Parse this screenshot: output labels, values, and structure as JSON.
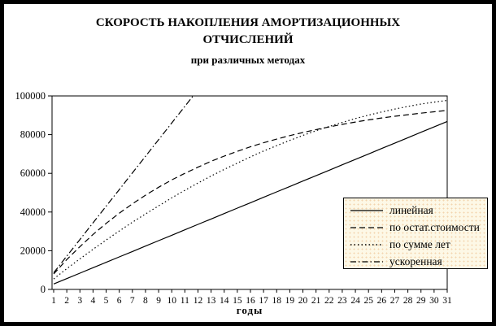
{
  "chart_data": {
    "type": "line",
    "title": "СКОРОСТЬ НАКОПЛЕНИЯ АМОРТИЗАЦИОННЫХ ОТЧИСЛЕНИЙ",
    "subtitle": "при различных методах",
    "xlabel": "годы",
    "ylabel": "",
    "x": [
      1,
      2,
      3,
      4,
      5,
      6,
      7,
      8,
      9,
      10,
      11,
      12,
      13,
      14,
      15,
      16,
      17,
      18,
      19,
      20,
      21,
      22,
      23,
      24,
      25,
      26,
      27,
      28,
      29,
      30,
      31
    ],
    "ylim": [
      0,
      100000
    ],
    "ytick_step": 20000,
    "ytick_labels": [
      "0",
      "20000",
      "40000",
      "60000",
      "80000",
      "100000"
    ],
    "grid": false,
    "legend_position": "overlay-right-middle",
    "line_color": "#000000",
    "series": [
      {
        "name": "линейная",
        "line_style": "solid",
        "color": "#000000",
        "values": [
          2800,
          5600,
          8400,
          11200,
          14000,
          16800,
          19600,
          22400,
          25200,
          28000,
          30800,
          33600,
          36400,
          39200,
          42000,
          44800,
          47600,
          50400,
          53200,
          56000,
          58800,
          61600,
          64400,
          67200,
          70000,
          72800,
          75600,
          78400,
          81200,
          84000,
          86800
        ]
      },
      {
        "name": "по остат.стоимости",
        "line_style": "dashed",
        "color": "#000000",
        "values": [
          8000,
          15400,
          22100,
          28400,
          34100,
          39400,
          44200,
          48700,
          52800,
          56600,
          60000,
          63200,
          66200,
          68900,
          71400,
          73700,
          75800,
          77700,
          79500,
          81100,
          82600,
          84000,
          85300,
          86500,
          87600,
          88600,
          89500,
          90300,
          91100,
          91800,
          92500
        ]
      },
      {
        "name": "по сумме лет",
        "line_style": "dotted",
        "color": "#000000",
        "values": [
          5400,
          10700,
          15800,
          20700,
          25500,
          30200,
          34700,
          39000,
          43200,
          47300,
          51200,
          55000,
          58600,
          62000,
          65300,
          68500,
          71500,
          74300,
          77000,
          79600,
          82000,
          84200,
          86300,
          88300,
          90100,
          91700,
          93200,
          94600,
          95800,
          96800,
          97700
        ]
      },
      {
        "name": "ускоренная",
        "line_style": "dashdot",
        "color": "#000000",
        "values": [
          8600,
          17200,
          25800,
          34400,
          43000,
          51600,
          60200,
          68800,
          77400,
          86000,
          94600,
          103200
        ],
        "clipped_at_ymax": true
      }
    ]
  }
}
